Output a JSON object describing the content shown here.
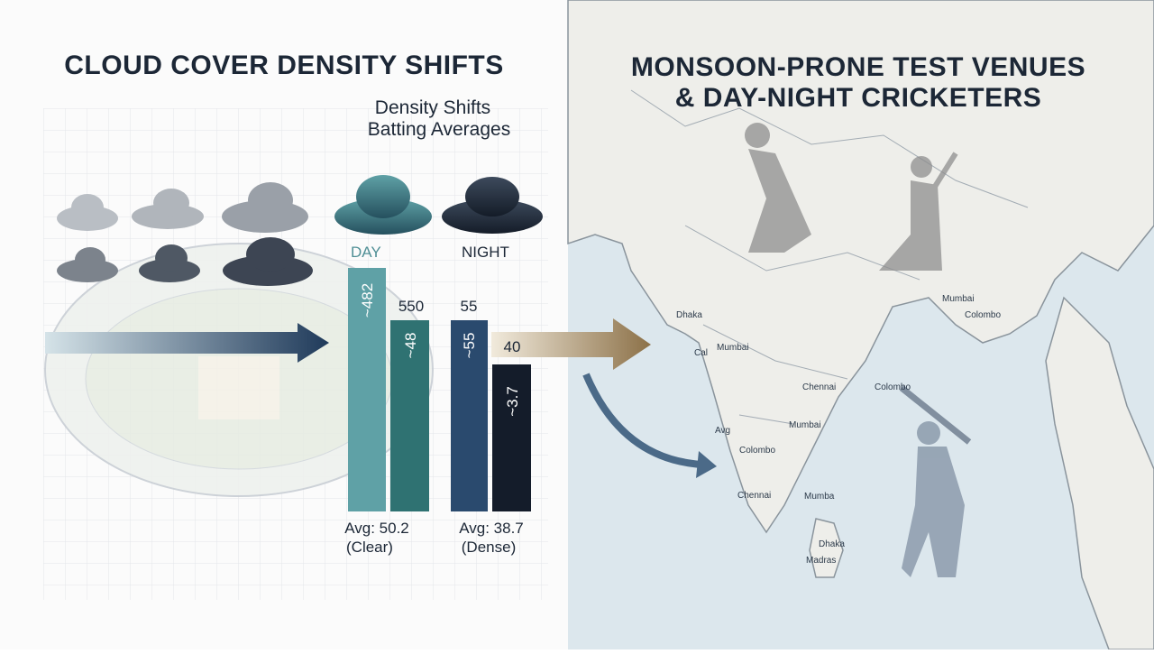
{
  "left_panel": {
    "title": "CLOUD COVER DENSITY SHIFTS",
    "subtitle": [
      "Density Shifts",
      "Batting Averages"
    ],
    "day": {
      "label": "DAY",
      "bar_labels": [
        "~482",
        "550",
        "~48"
      ],
      "average": "Avg: 50.2",
      "condition": "(Clear)"
    },
    "night": {
      "label": "NIGHT",
      "bar_labels": [
        "55",
        "~55",
        "40",
        "~3.7"
      ],
      "average": "Avg: 38.7",
      "condition": "(Dense)"
    }
  },
  "right_panel": {
    "title": [
      "MONSOON-PRONE TEST VENUES",
      "& DAY-NIGHT CRICKETERS"
    ],
    "map_labels": [
      "Dhaka",
      "Colombo",
      "Cal",
      "Mumbai",
      "Mumbai",
      "Colombo",
      "Chennai",
      "Mumbai",
      "Avg",
      "Colombo",
      "Chennai",
      "Mumba",
      "Dhaka",
      "Madras"
    ]
  }
}
